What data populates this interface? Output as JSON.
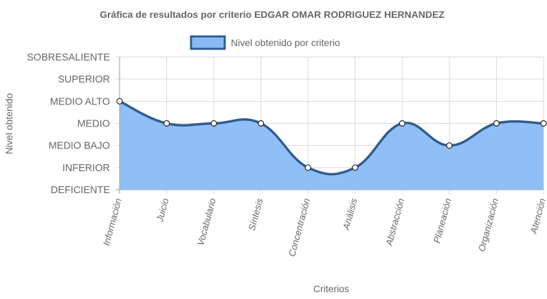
{
  "chart_data": {
    "type": "area",
    "title": "Gráfica de resultados por criterio EDGAR OMAR RODRIGUEZ HERNANDEZ",
    "xlabel": "Criterios",
    "ylabel": "Nivel obtenido",
    "y_levels": [
      "DEFICIENTE",
      "INFERIOR",
      "MEDIO BAJO",
      "MEDIO",
      "MEDIO ALTO",
      "SUPERIOR",
      "SOBRESALIENTE"
    ],
    "ylim": [
      0,
      6
    ],
    "categories": [
      "Información",
      "Juicio",
      "Vocabulario",
      "Síntesis",
      "Concentración",
      "Análisis",
      "Abstracción",
      "Planeación",
      "Organización",
      "Atención"
    ],
    "series": [
      {
        "name": "Nivel obtenido por criterio",
        "values": [
          4,
          3,
          3,
          3,
          1,
          1,
          3,
          2,
          3,
          3
        ],
        "labels": [
          "MEDIO ALTO",
          "MEDIO",
          "MEDIO",
          "MEDIO",
          "INFERIOR",
          "INFERIOR",
          "MEDIO",
          "MEDIO BAJO",
          "MEDIO",
          "MEDIO"
        ]
      }
    ],
    "grid": true,
    "legend": "top",
    "colors": {
      "fill": "#8ABBF7",
      "line": "#2E5C8F",
      "grid": "#D9D9D9",
      "text": "#666666"
    }
  }
}
